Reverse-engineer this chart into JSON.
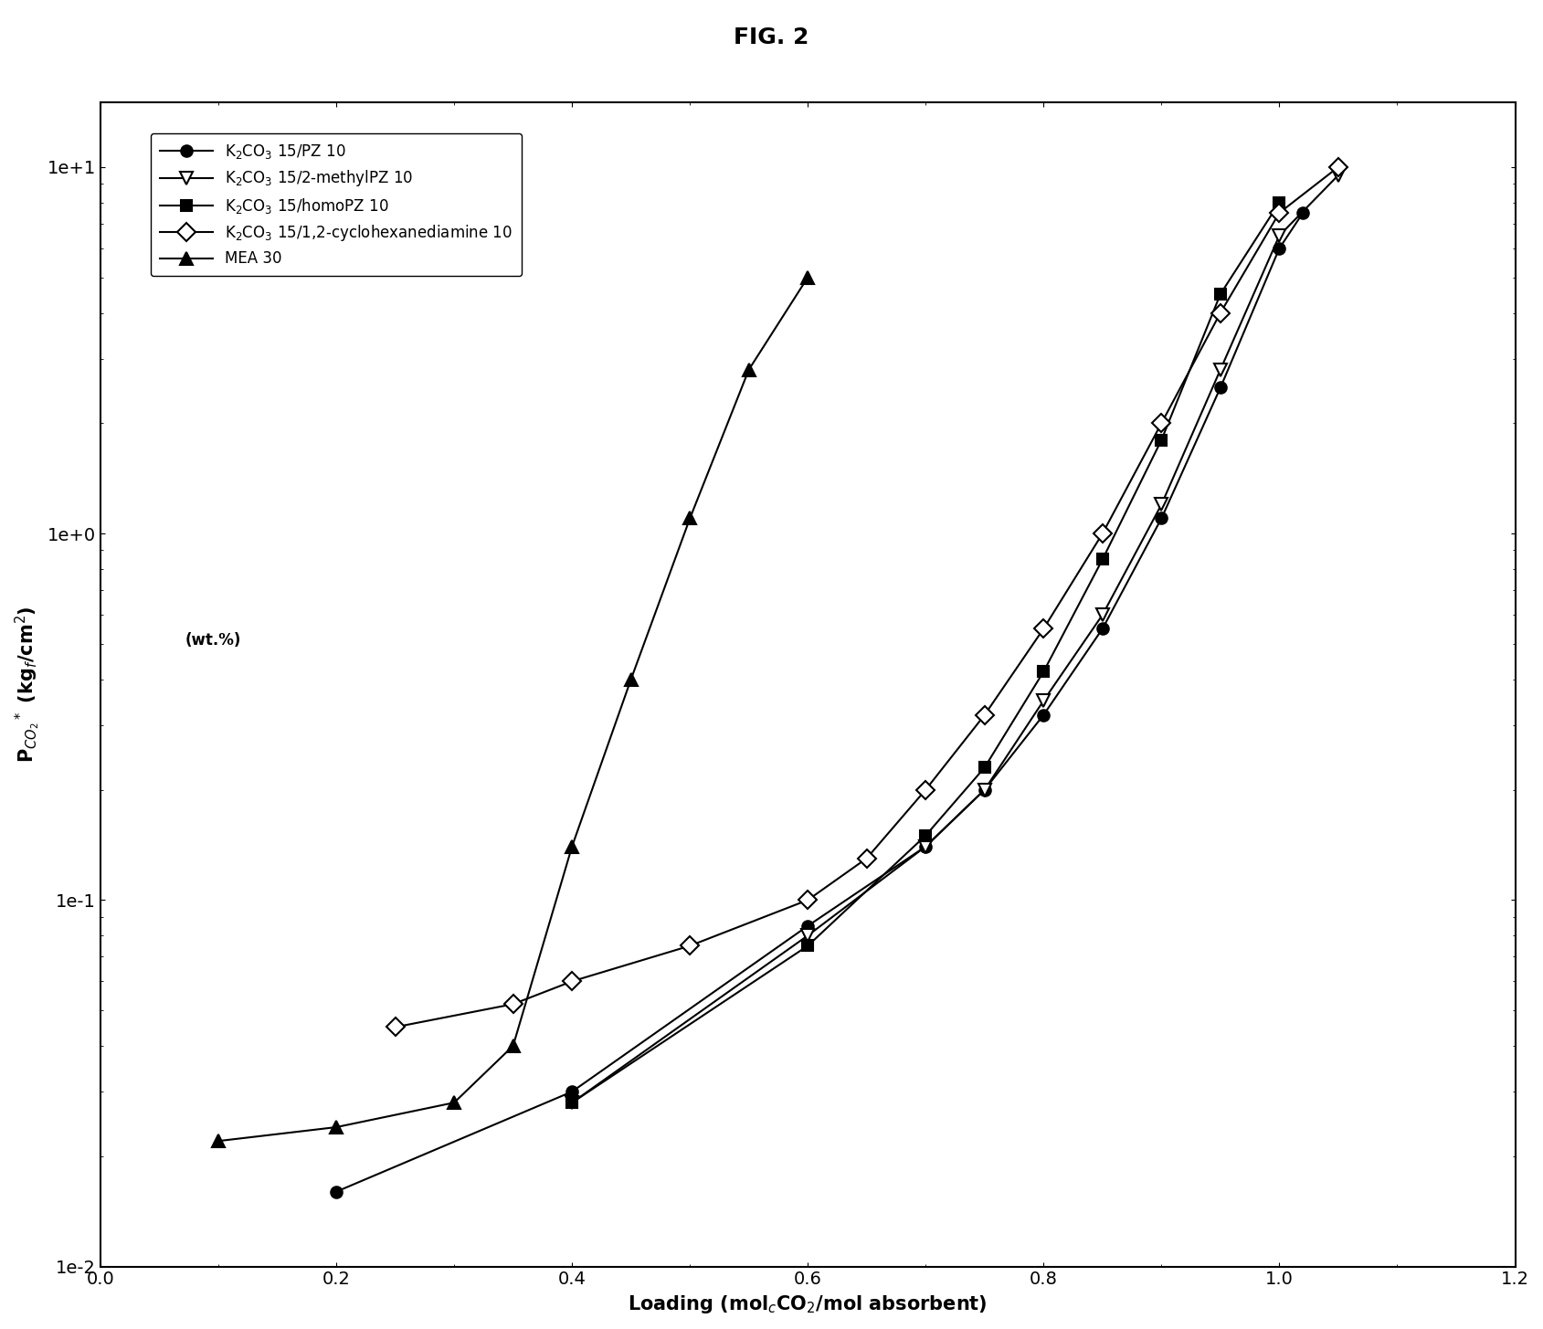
{
  "title": "FIG. 2",
  "xlabel": "Loading (mol$_{c}$CO$_{2}$/mol absorbent)",
  "ylabel": "P$_{CO_2}$$^*$ (kg$_f$/cm$^2$)",
  "xlim": [
    0.0,
    1.2
  ],
  "ylim_log": [
    0.01,
    15
  ],
  "xticks": [
    0.0,
    0.2,
    0.4,
    0.6,
    0.8,
    1.0,
    1.2
  ],
  "series": [
    {
      "label": "K$_2$CO$_3$ 15/PZ 10",
      "marker": "o",
      "marker_fill": "black",
      "marker_size": 9,
      "linestyle": "-",
      "color": "black",
      "x": [
        0.2,
        0.4,
        0.6,
        0.7,
        0.75,
        0.8,
        0.85,
        0.9,
        0.95,
        1.0,
        1.02
      ],
      "y": [
        0.016,
        0.03,
        0.085,
        0.14,
        0.2,
        0.32,
        0.55,
        1.1,
        2.5,
        6.0,
        7.5
      ]
    },
    {
      "label": "K$_2$CO$_3$ 15/2-methylPZ 10",
      "marker": "v",
      "marker_fill": "white",
      "marker_size": 10,
      "linestyle": "-",
      "color": "black",
      "x": [
        0.4,
        0.6,
        0.7,
        0.75,
        0.8,
        0.85,
        0.9,
        0.95,
        1.0,
        1.05
      ],
      "y": [
        0.028,
        0.08,
        0.14,
        0.2,
        0.35,
        0.6,
        1.2,
        2.8,
        6.5,
        9.5
      ]
    },
    {
      "label": "K$_2$CO$_3$ 15/homoPZ 10",
      "marker": "s",
      "marker_fill": "black",
      "marker_size": 9,
      "linestyle": "-",
      "color": "black",
      "x": [
        0.4,
        0.6,
        0.7,
        0.75,
        0.8,
        0.85,
        0.9,
        0.95,
        1.0
      ],
      "y": [
        0.028,
        0.075,
        0.15,
        0.23,
        0.42,
        0.85,
        1.8,
        4.5,
        8.0
      ]
    },
    {
      "label": "K$_2$CO$_3$ 15/1,2-cyclohexanediamine 10",
      "marker": "D",
      "marker_fill": "white",
      "marker_size": 10,
      "linestyle": "-",
      "color": "black",
      "x": [
        0.25,
        0.35,
        0.4,
        0.5,
        0.6,
        0.65,
        0.7,
        0.75,
        0.8,
        0.85,
        0.9,
        0.95,
        1.0,
        1.05
      ],
      "y": [
        0.045,
        0.052,
        0.06,
        0.075,
        0.1,
        0.13,
        0.2,
        0.32,
        0.55,
        1.0,
        2.0,
        4.0,
        7.5,
        10.0
      ]
    },
    {
      "label": "MEA 30",
      "marker": "^",
      "marker_fill": "black",
      "marker_size": 10,
      "linestyle": "-",
      "color": "black",
      "x": [
        0.1,
        0.2,
        0.3,
        0.35,
        0.4,
        0.45,
        0.5,
        0.55,
        0.6
      ],
      "y": [
        0.022,
        0.024,
        0.028,
        0.04,
        0.14,
        0.4,
        1.1,
        2.8,
        5.0
      ]
    }
  ],
  "legend_extra": "(wt.%)"
}
